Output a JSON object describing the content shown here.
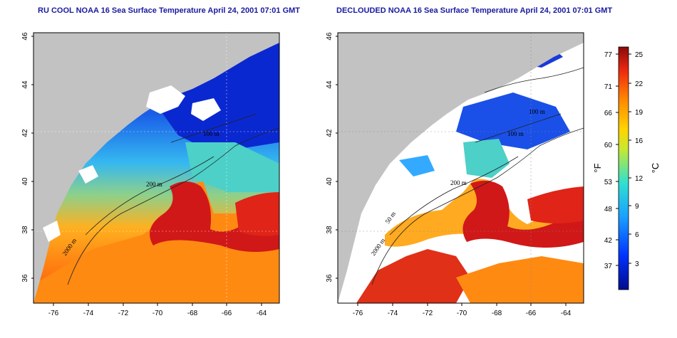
{
  "panels": [
    {
      "title": "RU COOL NOAA 16 Sea Surface Temperature April 24, 2001 07:01 GMT",
      "contour_labels": [
        "100 m",
        "200 m",
        "2000 m"
      ]
    },
    {
      "title": "DECLOUDED NOAA 16 Sea Surface Temperature April 24, 2001 07:01 GMT",
      "contour_labels": [
        "100 m",
        "100 m",
        "200 m",
        "50 m",
        "2000 m"
      ]
    }
  ],
  "axes": {
    "lon_ticks": [
      "-76",
      "-74",
      "-72",
      "-70",
      "-68",
      "-66",
      "-64"
    ],
    "lat_ticks": [
      "36",
      "38",
      "40",
      "42",
      "44",
      "46"
    ]
  },
  "colorbar": {
    "fahrenheit_label": "°F",
    "celsius_label": "°C",
    "fahrenheit_ticks": [
      "37",
      "42",
      "48",
      "53",
      "60",
      "66",
      "71",
      "77"
    ],
    "celsius_ticks": [
      "3",
      "6",
      "9",
      "12",
      "16",
      "19",
      "22",
      "25"
    ]
  },
  "colors": {
    "land": "#c2c2c2",
    "cloud": "#ffffff",
    "cold": "#0022cc",
    "mid": "#33aaff",
    "warm": "#ff7a10",
    "hot": "#d21414",
    "title": "#1a1aa0"
  }
}
